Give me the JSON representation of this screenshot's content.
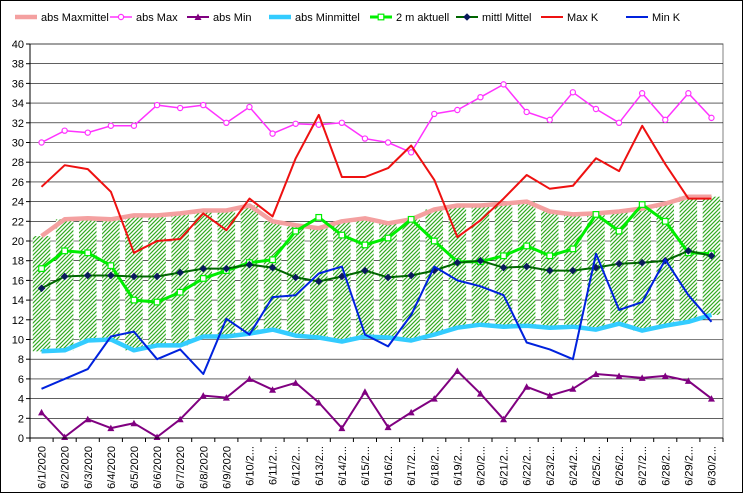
{
  "chart_data": {
    "type": "line",
    "title": "",
    "xlabel": "",
    "ylabel": "",
    "ylim": [
      0,
      40
    ],
    "yticks": [
      0,
      2,
      4,
      6,
      8,
      10,
      12,
      14,
      16,
      18,
      20,
      22,
      24,
      26,
      28,
      30,
      32,
      34,
      36,
      38,
      40
    ],
    "grid": true,
    "legend_position": "top",
    "categories": [
      "6/1/2020",
      "6/2/2020",
      "6/3/2020",
      "6/4/2020",
      "6/5/2020",
      "6/6/2020",
      "6/7/2020",
      "6/8/2020",
      "6/9/2020",
      "6/10/2...",
      "6/11/2...",
      "6/12/2...",
      "6/13/2...",
      "6/14/2...",
      "6/15/2...",
      "6/16/2...",
      "6/17/2...",
      "6/18/2...",
      "6/19/2...",
      "6/20/2...",
      "6/21/2...",
      "6/22/2...",
      "6/23/2...",
      "6/24/2...",
      "6/25/2...",
      "6/26/2...",
      "6/27/2...",
      "6/28/2...",
      "6/29/2...",
      "6/30/2..."
    ],
    "series": [
      {
        "name": "abs Maxmittel",
        "color": "#f4a0a0",
        "values": [
          20.5,
          22.2,
          22.3,
          22.2,
          22.6,
          22.6,
          22.8,
          23.1,
          23.1,
          23.6,
          22.0,
          21.6,
          21.3,
          22.0,
          22.3,
          21.8,
          22.2,
          23.2,
          23.6,
          23.6,
          23.8,
          24.0,
          23.0,
          22.7,
          22.8,
          23.0,
          23.3,
          23.8,
          24.5,
          24.5
        ]
      },
      {
        "name": "abs Max",
        "color": "#ff33ff",
        "values": [
          30.0,
          31.2,
          31.0,
          31.7,
          31.7,
          33.8,
          33.5,
          33.8,
          32.0,
          33.6,
          30.9,
          31.9,
          31.8,
          32.0,
          30.4,
          30.0,
          29.0,
          32.9,
          33.3,
          34.6,
          35.9,
          33.1,
          32.3,
          35.1,
          33.4,
          32.0,
          35.0,
          32.3,
          35.0,
          32.5
        ]
      },
      {
        "name": "abs Min",
        "color": "#800080",
        "values": [
          2.6,
          0.1,
          1.9,
          1.0,
          1.5,
          0.1,
          1.9,
          4.3,
          4.1,
          6.0,
          4.9,
          5.6,
          3.6,
          1.0,
          4.7,
          1.1,
          2.6,
          4.0,
          6.8,
          4.5,
          1.9,
          5.2,
          4.3,
          5.0,
          6.5,
          6.3,
          6.1,
          6.3,
          5.8,
          4.0
        ]
      },
      {
        "name": "abs Minmittel",
        "color": "#33ccff",
        "values": [
          8.8,
          8.9,
          9.9,
          10.0,
          8.9,
          9.4,
          9.4,
          10.3,
          10.3,
          10.6,
          11.0,
          10.4,
          10.2,
          9.8,
          10.3,
          10.2,
          9.9,
          10.5,
          11.2,
          11.5,
          11.3,
          11.4,
          11.2,
          11.3,
          11.0,
          11.6,
          10.9,
          11.4,
          11.8,
          12.5
        ]
      },
      {
        "name": "2 m aktuell",
        "color": "#00ee00",
        "values": [
          17.2,
          19.0,
          18.8,
          17.5,
          14.0,
          13.8,
          14.8,
          16.2,
          17.0,
          17.8,
          18.1,
          21.0,
          22.4,
          20.6,
          19.6,
          20.3,
          22.2,
          20.0,
          17.9,
          17.9,
          18.5,
          19.5,
          18.5,
          19.2,
          22.7,
          21.0,
          23.7,
          22.0,
          18.8,
          18.7
        ]
      },
      {
        "name": "mittl Mittel",
        "color": "#006600",
        "values": [
          15.2,
          16.4,
          16.5,
          16.5,
          16.4,
          16.4,
          16.8,
          17.2,
          17.2,
          17.6,
          17.3,
          16.3,
          15.9,
          16.4,
          17.0,
          16.3,
          16.5,
          17.0,
          17.8,
          18.0,
          17.3,
          17.4,
          17.0,
          17.0,
          17.3,
          17.7,
          17.8,
          18.0,
          19.0,
          18.5
        ]
      },
      {
        "name": "Max K",
        "color": "#ee1111",
        "values": [
          25.5,
          27.7,
          27.3,
          25.0,
          18.8,
          20.0,
          20.2,
          22.8,
          21.1,
          24.3,
          22.5,
          28.4,
          32.8,
          26.5,
          26.5,
          27.4,
          29.7,
          26.2,
          20.4,
          22.1,
          24.3,
          26.7,
          25.3,
          25.6,
          28.4,
          27.1,
          31.7,
          27.8,
          24.3,
          24.3
        ]
      },
      {
        "name": "Min K",
        "color": "#0022dd",
        "values": [
          5.0,
          6.0,
          7.0,
          10.3,
          10.8,
          8.0,
          9.0,
          6.5,
          12.1,
          10.5,
          14.3,
          14.5,
          16.7,
          17.4,
          10.5,
          9.3,
          12.5,
          17.4,
          16.0,
          15.4,
          14.5,
          9.7,
          9.0,
          8.0,
          18.7,
          13.0,
          13.8,
          18.1,
          14.5,
          11.8
        ]
      }
    ]
  }
}
